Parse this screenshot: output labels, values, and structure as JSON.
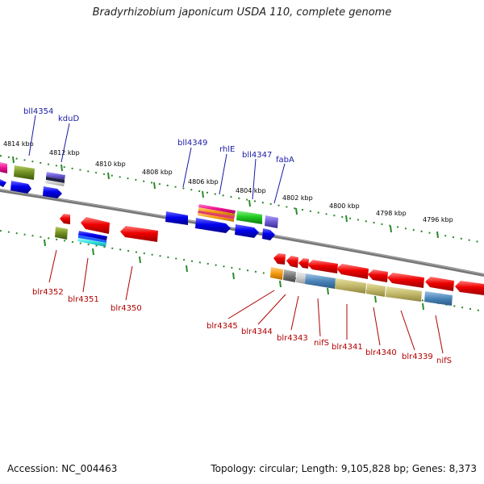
{
  "title": "Bradyrhizobium japonicum USDA 110, complete genome",
  "footer": {
    "accession": "Accession: NC_004463",
    "summary": "Topology: circular; Length: 9,105,828 bp; Genes: 8,373"
  },
  "colors": {
    "backbone": "#777777",
    "tick": "#2a8a2a",
    "top_label": "#1a1aa6",
    "bottom_label": "#b00000"
  },
  "ticks": [
    "4814 kbp",
    "4812 kbp",
    "4810 kbp",
    "4808 kbp",
    "4806 kbp",
    "4804 kbp",
    "4802 kbp",
    "4800 kbp",
    "4798 kbp",
    "4796 kbp"
  ],
  "top_labels": [
    "bll4354",
    "kduD",
    "bll4349",
    "rhlE",
    "bll4347",
    "fabA"
  ],
  "bottom_labels": [
    "blr4352",
    "blr4351",
    "blr4350",
    "blr4345",
    "blr4344",
    "blr4343",
    "nifS",
    "blr4341",
    "blr4340",
    "blr4339",
    "nifS"
  ]
}
